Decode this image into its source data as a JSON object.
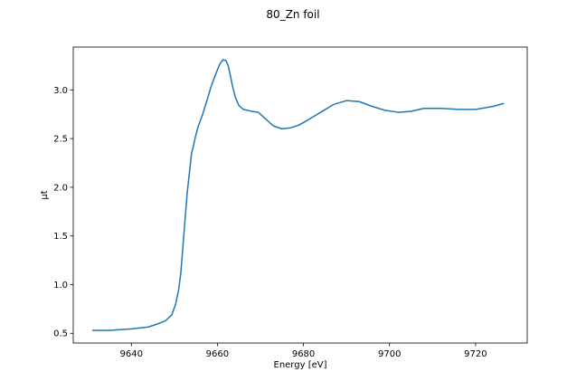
{
  "chart_data": {
    "type": "line",
    "title": "80_Zn foil",
    "xlabel": "Energy [eV]",
    "ylabel": "μt",
    "xlim": [
      9626.5,
      9732.0
    ],
    "ylim": [
      0.4,
      3.44
    ],
    "xticks": [
      9640,
      9660,
      9680,
      9700,
      9720
    ],
    "yticks": [
      0.5,
      1.0,
      1.5,
      2.0,
      2.5,
      3.0
    ],
    "ytick_labels": [
      "0.5",
      "1.0",
      "1.5",
      "2.0",
      "2.5",
      "3.0"
    ],
    "grid": false,
    "legend": "none",
    "series": [
      {
        "color": "#1f77b4",
        "x": [
          9631,
          9635,
          9640,
          9644,
          9646,
          9648,
          9649.4,
          9650.3,
          9651.0,
          9651.5,
          9652.0,
          9652.5,
          9653.0,
          9653.5,
          9654.0,
          9654.3,
          9654.8,
          9655.5,
          9656.5,
          9657.5,
          9658.5,
          9659.5,
          9660.5,
          9661.3,
          9662.0,
          9662.5,
          9663.0,
          9663.5,
          9664.2,
          9665.0,
          9666.0,
          9667.0,
          9668.0,
          9669.5,
          9671.0,
          9673.0,
          9675.0,
          9677.0,
          9679.0,
          9681.0,
          9684.0,
          9687.0,
          9690.0,
          9693.0,
          9696.0,
          9699.0,
          9702.0,
          9705.0,
          9708.0,
          9712.0,
          9716.0,
          9720.0,
          9724.0,
          9726.5
        ],
        "y": [
          0.53,
          0.53,
          0.545,
          0.565,
          0.595,
          0.63,
          0.69,
          0.8,
          0.95,
          1.12,
          1.4,
          1.68,
          1.95,
          2.15,
          2.35,
          2.4,
          2.5,
          2.62,
          2.74,
          2.88,
          3.03,
          3.15,
          3.26,
          3.31,
          3.3,
          3.25,
          3.15,
          3.04,
          2.92,
          2.84,
          2.8,
          2.79,
          2.78,
          2.77,
          2.71,
          2.63,
          2.6,
          2.61,
          2.64,
          2.69,
          2.77,
          2.85,
          2.89,
          2.88,
          2.83,
          2.79,
          2.77,
          2.78,
          2.81,
          2.81,
          2.8,
          2.8,
          2.83,
          2.86
        ]
      }
    ]
  }
}
